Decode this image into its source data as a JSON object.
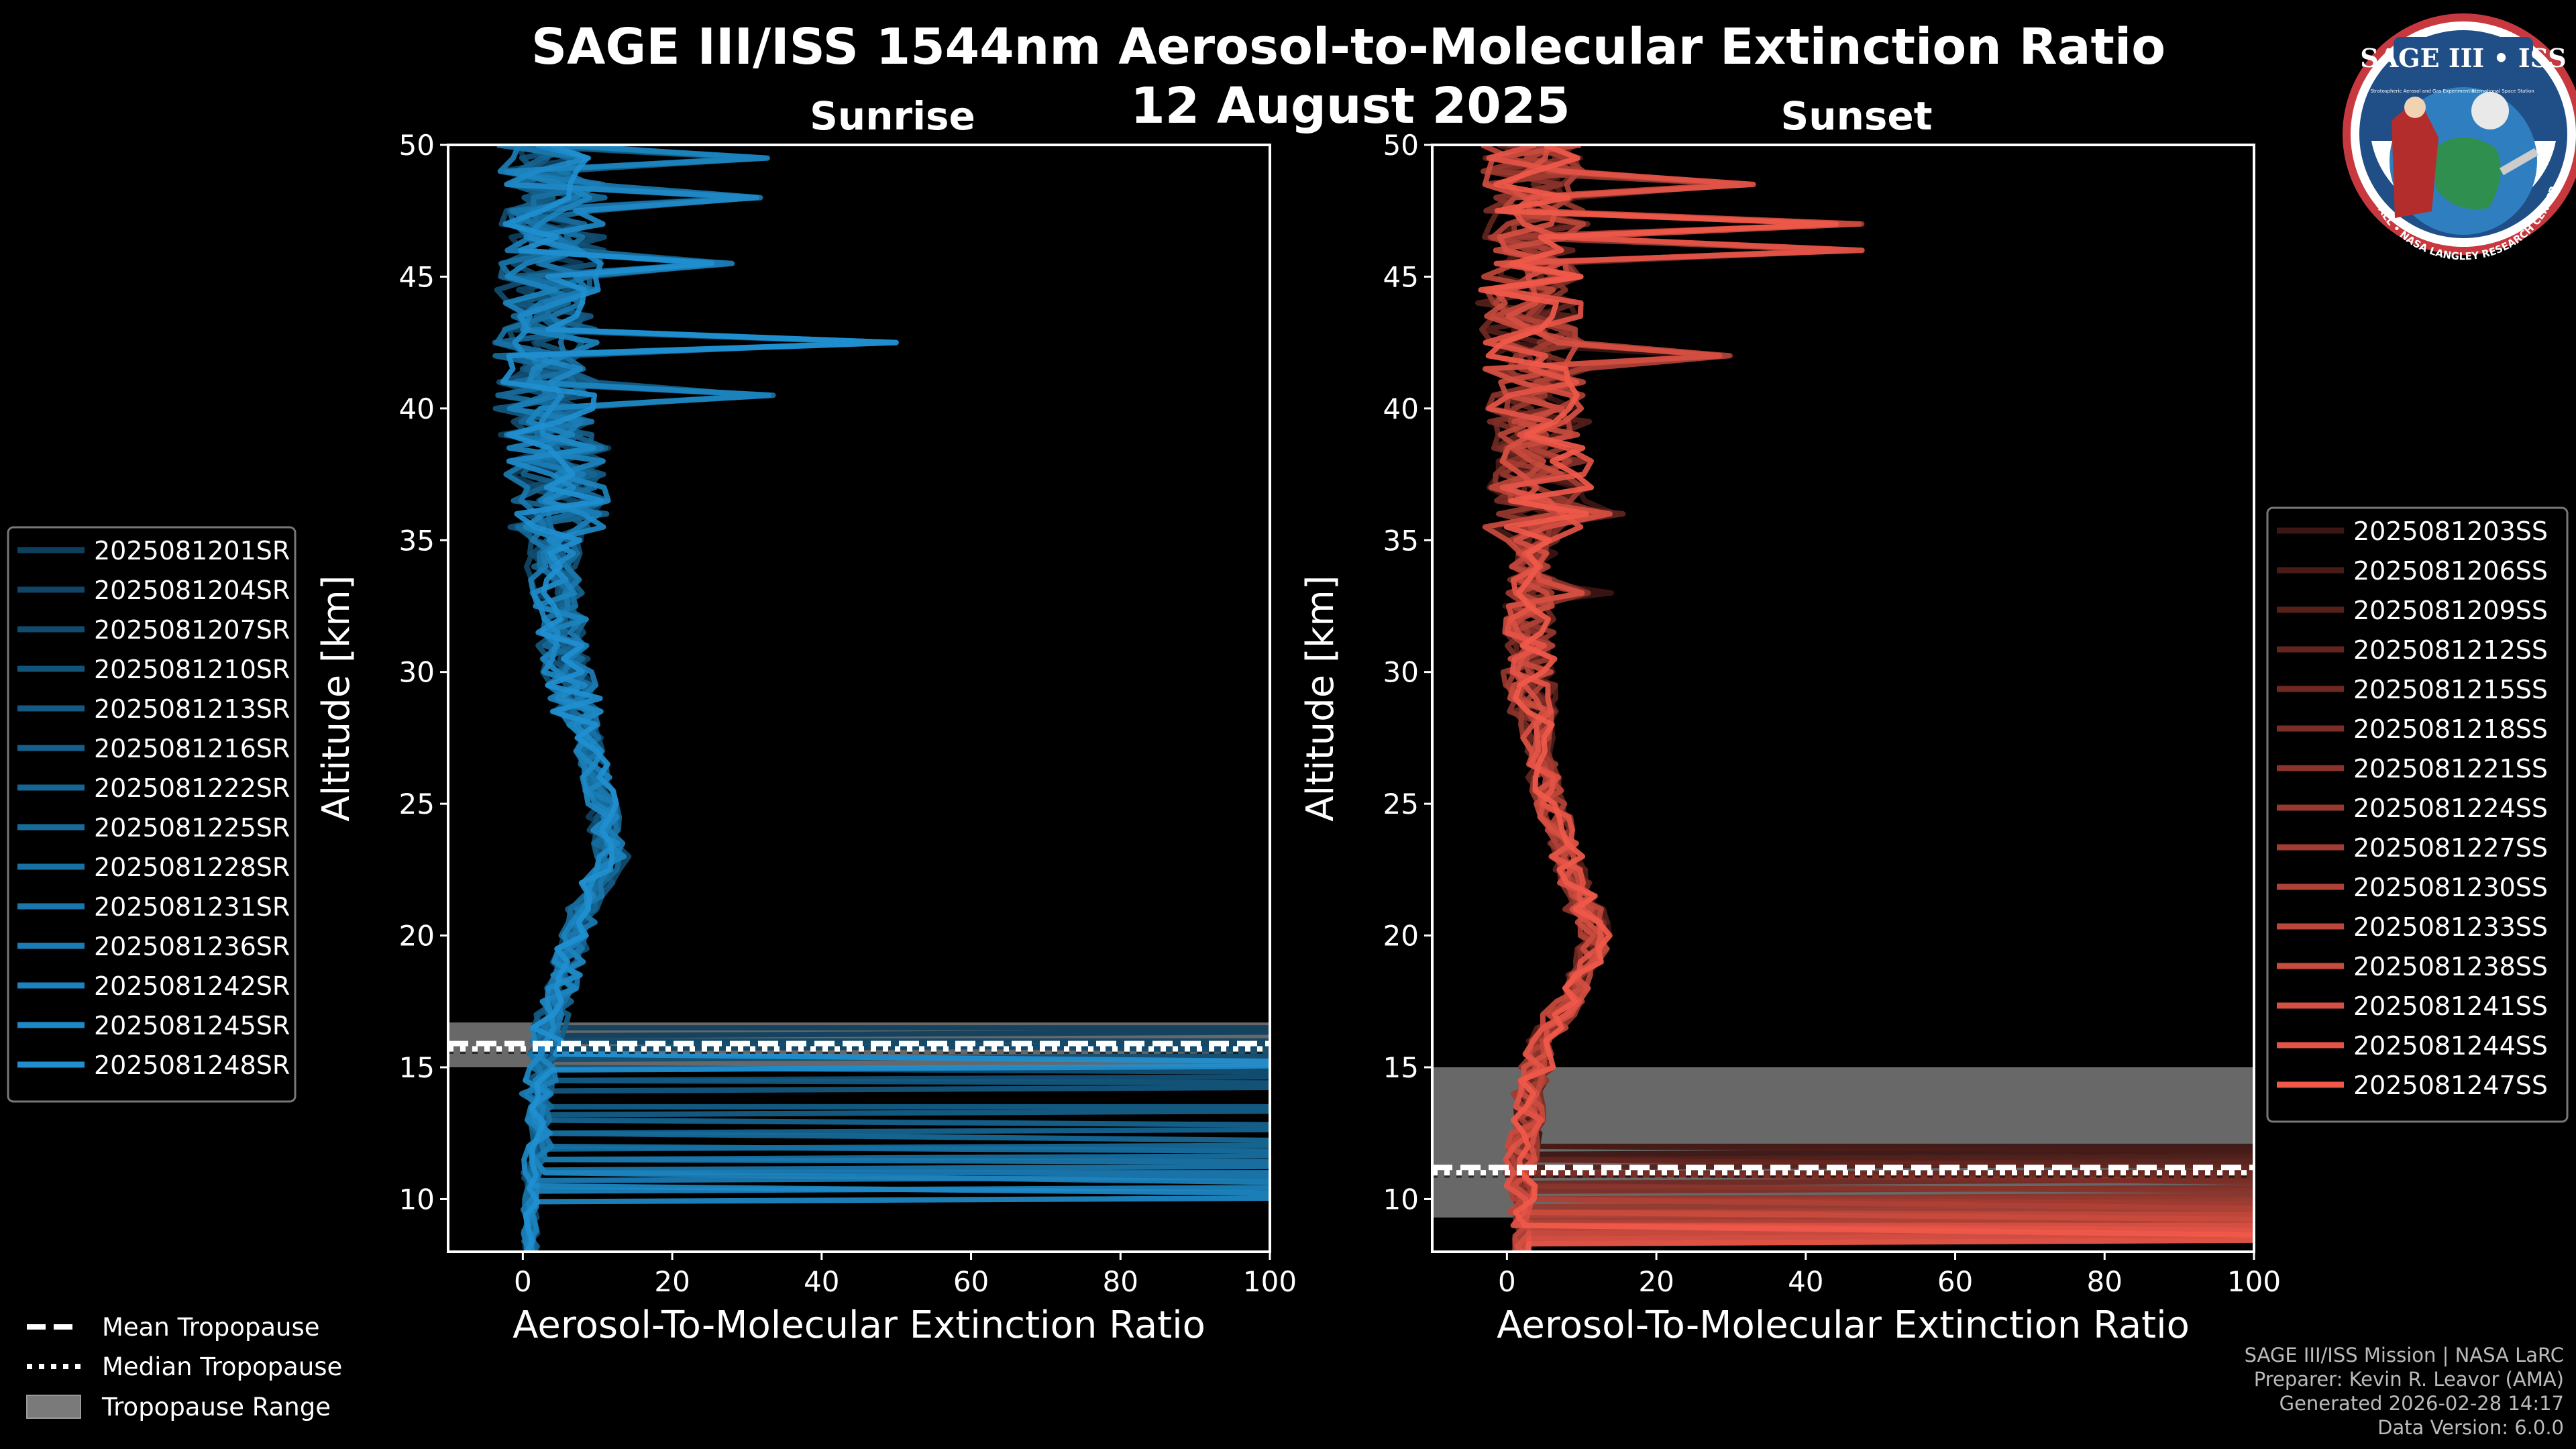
{
  "header": {
    "title": "SAGE III/ISS 1544nm Aerosol-to-Molecular Extinction Ratio",
    "date": "12 August 2025",
    "logo_text": "SAGE III • ISS",
    "logo_ring_text": "BALL • NASA LANGLEY RESEARCH CENTER • TAS-I • ESA",
    "logo_sub_left": "Stratospheric Aerosol and Gas Experiment III",
    "logo_sub_right": "International Space Station"
  },
  "colors": {
    "background": "#000000",
    "sunrise_series": "#1f8fd0",
    "sunset_series": "#f0594a",
    "tropopause_range": "#7a7a7a",
    "axis": "#ffffff"
  },
  "legend_tropopause": {
    "mean": "Mean Tropopause",
    "median": "Median Tropopause",
    "range": "Tropopause Range"
  },
  "footer": {
    "line1": "SAGE III/ISS Mission | NASA LaRC",
    "line2": "Preparer: Kevin R. Leavor (AMA)",
    "line3": "Generated 2026-02-28 14:17",
    "line4": "Data Version: 6.0.0"
  },
  "chart_data": [
    {
      "type": "line",
      "title": "Sunrise",
      "xlabel": "Aerosol-To-Molecular Extinction Ratio",
      "ylabel": "Altitude [km]",
      "xlim": [
        -10,
        100
      ],
      "ylim": [
        8,
        50
      ],
      "xticks": [
        0,
        20,
        40,
        60,
        80,
        100
      ],
      "yticks": [
        10,
        15,
        20,
        25,
        30,
        35,
        40,
        45,
        50
      ],
      "tropopause": {
        "mean": 15.9,
        "median": 15.7,
        "range": [
          15.0,
          16.7
        ]
      },
      "legend_position": "outside-left",
      "profile_shape": {
        "altitudes": [
          50,
          48,
          46,
          44,
          42,
          40,
          38,
          36,
          34,
          32,
          30,
          28,
          26,
          24,
          23,
          22,
          21,
          20,
          19,
          18,
          17,
          16,
          15,
          14,
          13,
          12,
          11,
          10,
          9,
          8
        ],
        "ratio": [
          3,
          4,
          4,
          3,
          3,
          3,
          4,
          5,
          4,
          5,
          6,
          8,
          10,
          11,
          12,
          10,
          8,
          7,
          6,
          5,
          4,
          3,
          3,
          2,
          2,
          2,
          1,
          1,
          1,
          1
        ]
      },
      "series": [
        {
          "name": "2025081201SR"
        },
        {
          "name": "2025081204SR"
        },
        {
          "name": "2025081207SR"
        },
        {
          "name": "2025081210SR"
        },
        {
          "name": "2025081213SR"
        },
        {
          "name": "2025081216SR"
        },
        {
          "name": "2025081222SR"
        },
        {
          "name": "2025081225SR"
        },
        {
          "name": "2025081228SR"
        },
        {
          "name": "2025081231SR"
        },
        {
          "name": "2025081236SR"
        },
        {
          "name": "2025081242SR"
        },
        {
          "name": "2025081245SR"
        },
        {
          "name": "2025081248SR"
        }
      ],
      "spikes": [
        {
          "alt": 49.5,
          "x": 34
        },
        {
          "alt": 48.0,
          "x": 33
        },
        {
          "alt": 45.5,
          "x": 29
        },
        {
          "alt": 42.5,
          "x": 50
        },
        {
          "alt": 40.5,
          "x": 35
        },
        {
          "alt": 38.5,
          "x": 12
        }
      ],
      "low_altitude_cutoffs": [
        16.5,
        16.0,
        15.6,
        14.8,
        14.4,
        13.5,
        12.8,
        12.2,
        11.8,
        11.4,
        11.0,
        10.6,
        10.2,
        15.2
      ]
    },
    {
      "type": "line",
      "title": "Sunset",
      "xlabel": "Aerosol-To-Molecular Extinction Ratio",
      "ylabel": "Altitude [km]",
      "xlim": [
        -10,
        100
      ],
      "ylim": [
        8,
        50
      ],
      "xticks": [
        0,
        20,
        40,
        60,
        80,
        100
      ],
      "yticks": [
        10,
        15,
        20,
        25,
        30,
        35,
        40,
        45,
        50
      ],
      "tropopause": {
        "mean": 11.2,
        "median": 11.0,
        "range": [
          9.3,
          15.0
        ]
      },
      "legend_position": "outside-right",
      "profile_shape": {
        "altitudes": [
          50,
          48,
          46,
          44,
          42,
          40,
          38,
          36,
          34,
          32,
          30,
          28,
          26,
          24,
          22,
          21,
          20,
          19,
          18,
          17,
          16,
          15,
          14,
          13,
          12,
          11,
          10,
          9,
          8
        ],
        "ratio": [
          3,
          4,
          4,
          3,
          4,
          4,
          5,
          4,
          3,
          3,
          3,
          4,
          5,
          7,
          9,
          11,
          12,
          11,
          9,
          7,
          5,
          4,
          3,
          3,
          2,
          2,
          2,
          2,
          2
        ]
      },
      "series": [
        {
          "name": "2025081203SS"
        },
        {
          "name": "2025081206SS"
        },
        {
          "name": "2025081209SS"
        },
        {
          "name": "2025081212SS"
        },
        {
          "name": "2025081215SS"
        },
        {
          "name": "2025081218SS"
        },
        {
          "name": "2025081221SS"
        },
        {
          "name": "2025081224SS"
        },
        {
          "name": "2025081227SS"
        },
        {
          "name": "2025081230SS"
        },
        {
          "name": "2025081233SS"
        },
        {
          "name": "2025081238SS"
        },
        {
          "name": "2025081241SS"
        },
        {
          "name": "2025081244SS"
        },
        {
          "name": "2025081247SS"
        }
      ],
      "spikes": [
        {
          "alt": 48.5,
          "x": 33
        },
        {
          "alt": 47.0,
          "x": 48
        },
        {
          "alt": 46.0,
          "x": 48
        },
        {
          "alt": 42.0,
          "x": 30
        },
        {
          "alt": 36.0,
          "x": 16
        },
        {
          "alt": 34.5,
          "x": 5
        },
        {
          "alt": 33.0,
          "x": 14
        },
        {
          "alt": 21.0,
          "x": 11
        }
      ],
      "low_altitude_cutoffs": [
        12.0,
        11.8,
        11.5,
        11.2,
        10.9,
        10.6,
        10.3,
        10.0,
        9.8,
        9.6,
        9.4,
        9.2,
        9.0,
        8.8,
        8.6
      ]
    }
  ]
}
